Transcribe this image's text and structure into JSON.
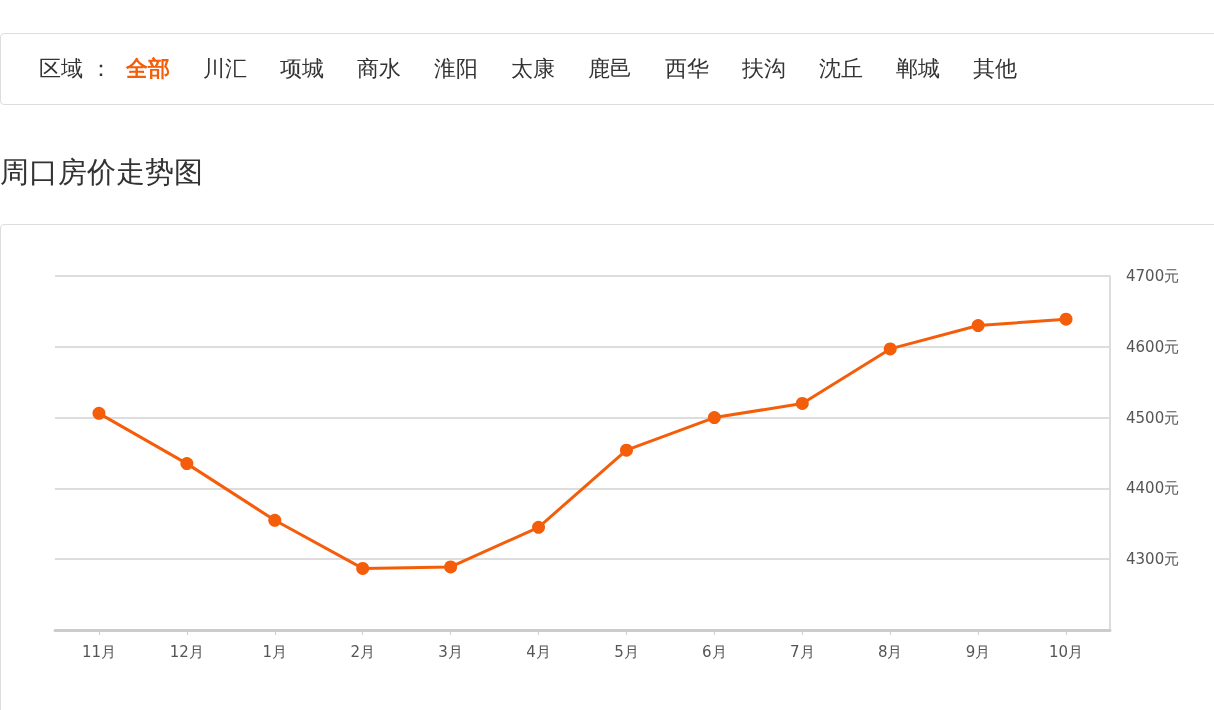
{
  "chart_data": {
    "type": "line",
    "title": "周口房价走势图",
    "annotations": [
      "区域 ：",
      "全部",
      "川汇",
      "项城",
      "商水",
      "淮阳",
      "太康",
      "鹿邑",
      "西华",
      "扶沟",
      "沈丘",
      "郸城",
      "其他"
    ],
    "categories": [
      "11月",
      "12月",
      "1月",
      "2月",
      "3月",
      "4月",
      "5月",
      "6月",
      "7月",
      "8月",
      "9月",
      "10月"
    ],
    "series": [
      {
        "color": "#f45e0a",
        "values": [
          4506,
          4435,
          4355,
          4287,
          4289,
          4345,
          4454,
          4500,
          4520,
          4597,
          4630,
          4639
        ]
      }
    ],
    "ylim": [
      4200,
      4700
    ],
    "yticks": [
      {
        "value": 4200,
        "label": null
      },
      {
        "value": 4300,
        "label": "4300元"
      },
      {
        "value": 4400,
        "label": "4400元"
      },
      {
        "value": 4500,
        "label": "4500元"
      },
      {
        "value": 4600,
        "label": "4600元"
      },
      {
        "value": 4700,
        "label": "4700元"
      }
    ],
    "grid": "y",
    "marker": "circle",
    "line_style": "solid"
  }
}
